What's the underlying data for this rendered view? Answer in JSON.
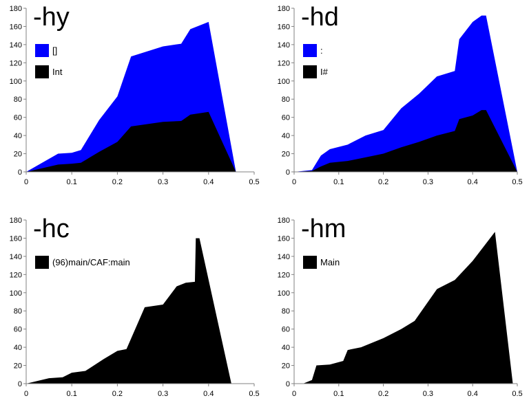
{
  "chart_data": [
    {
      "type": "area",
      "title": "-hy",
      "xlim": [
        0,
        0.5
      ],
      "ylim": [
        0,
        180
      ],
      "xticks": [
        "0",
        "0.1",
        "0.2",
        "0.3",
        "0.4",
        "0.5"
      ],
      "yticks": [
        "0",
        "20",
        "40",
        "60",
        "80",
        "100",
        "120",
        "140",
        "160",
        "180"
      ],
      "stacked": true,
      "legend_position": "top-left",
      "series": [
        {
          "name": "Int",
          "color": "#000000",
          "x": [
            0,
            0.07,
            0.1,
            0.12,
            0.16,
            0.2,
            0.23,
            0.3,
            0.34,
            0.36,
            0.4,
            0.46
          ],
          "y": [
            0,
            8,
            9,
            10,
            22,
            33,
            50,
            55,
            56,
            63,
            66,
            0
          ]
        },
        {
          "name": "[]",
          "color": "#0000FF",
          "x": [
            0,
            0.07,
            0.1,
            0.12,
            0.16,
            0.2,
            0.23,
            0.3,
            0.34,
            0.36,
            0.4,
            0.46
          ],
          "y": [
            0,
            12,
            12,
            14,
            35,
            50,
            77,
            83,
            85,
            94,
            99,
            0
          ]
        }
      ]
    },
    {
      "type": "area",
      "title": "-hd",
      "xlim": [
        0,
        0.5
      ],
      "ylim": [
        0,
        180
      ],
      "xticks": [
        "0",
        "0.1",
        "0.2",
        "0.3",
        "0.4",
        "0.5"
      ],
      "yticks": [
        "0",
        "20",
        "40",
        "60",
        "80",
        "100",
        "120",
        "140",
        "160",
        "180"
      ],
      "stacked": true,
      "legend_position": "top-left",
      "series": [
        {
          "name": "I#",
          "color": "#000000",
          "x": [
            0,
            0.04,
            0.06,
            0.08,
            0.12,
            0.16,
            0.2,
            0.24,
            0.28,
            0.32,
            0.36,
            0.37,
            0.4,
            0.42,
            0.43,
            0.5
          ],
          "y": [
            0,
            1,
            6,
            10,
            12,
            16,
            20,
            27,
            33,
            40,
            45,
            58,
            62,
            68,
            68,
            0
          ]
        },
        {
          "name": ":",
          "color": "#0000FF",
          "x": [
            0,
            0.04,
            0.06,
            0.08,
            0.12,
            0.16,
            0.2,
            0.24,
            0.28,
            0.32,
            0.36,
            0.37,
            0.4,
            0.42,
            0.43,
            0.5
          ],
          "y": [
            0,
            1,
            12,
            15,
            18,
            24,
            26,
            43,
            53,
            65,
            66,
            88,
            103,
            104,
            104,
            0
          ]
        }
      ]
    },
    {
      "type": "area",
      "title": "-hc",
      "xlim": [
        0,
        0.5
      ],
      "ylim": [
        0,
        180
      ],
      "xticks": [
        "0",
        "0.1",
        "0.2",
        "0.3",
        "0.4",
        "0.5"
      ],
      "yticks": [
        "0",
        "20",
        "40",
        "60",
        "80",
        "100",
        "120",
        "140",
        "160",
        "180"
      ],
      "legend_position": "top-left",
      "series": [
        {
          "name": "(96)main/CAF:main",
          "color": "#000000",
          "x": [
            0,
            0.05,
            0.08,
            0.1,
            0.13,
            0.17,
            0.2,
            0.22,
            0.26,
            0.3,
            0.33,
            0.35,
            0.37,
            0.372,
            0.38,
            0.45
          ],
          "y": [
            0,
            6,
            7,
            12,
            14,
            27,
            36,
            38,
            84,
            87,
            107,
            111,
            112,
            160,
            160,
            0
          ]
        }
      ]
    },
    {
      "type": "area",
      "title": "-hm",
      "xlim": [
        0,
        0.5
      ],
      "ylim": [
        0,
        180
      ],
      "xticks": [
        "0",
        "0.1",
        "0.2",
        "0.3",
        "0.4",
        "0.5"
      ],
      "yticks": [
        "0",
        "20",
        "40",
        "60",
        "80",
        "100",
        "120",
        "140",
        "160",
        "180"
      ],
      "legend_position": "top-left",
      "series": [
        {
          "name": "Main",
          "color": "#000000",
          "x": [
            0.02,
            0.04,
            0.05,
            0.08,
            0.11,
            0.12,
            0.15,
            0.2,
            0.24,
            0.27,
            0.3,
            0.32,
            0.36,
            0.4,
            0.45,
            0.49
          ],
          "y": [
            0,
            4,
            20,
            21,
            25,
            37,
            40,
            50,
            60,
            69,
            90,
            104,
            114,
            135,
            167,
            0
          ]
        }
      ]
    }
  ]
}
